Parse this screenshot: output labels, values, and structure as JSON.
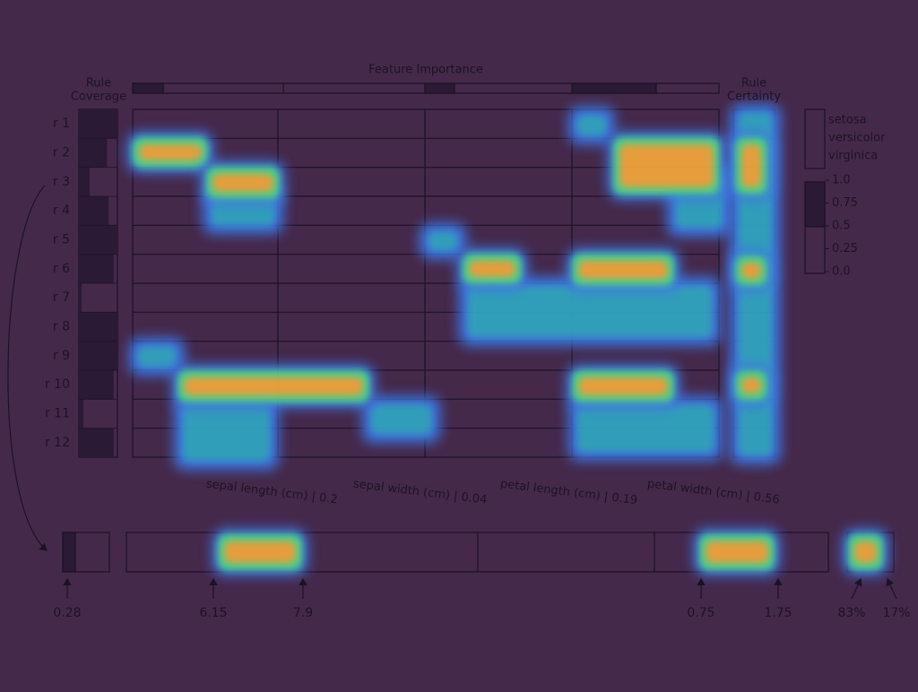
{
  "header": {
    "coverage_title": [
      "Rule",
      "Coverage"
    ],
    "importance_title": "Feature Importance",
    "certainty_title": [
      "Rule",
      "Certainty"
    ]
  },
  "rules": [
    {
      "label": "r 1",
      "coverage": 1.0
    },
    {
      "label": "r 2",
      "coverage": 0.73
    },
    {
      "label": "r 3",
      "coverage": 0.28
    },
    {
      "label": "r 4",
      "coverage": 0.77
    },
    {
      "label": "r 5",
      "coverage": 1.0
    },
    {
      "label": "r 6",
      "coverage": 0.9
    },
    {
      "label": "r 7",
      "coverage": 0.07
    },
    {
      "label": "r 8",
      "coverage": 1.0
    },
    {
      "label": "r 9",
      "coverage": 1.0
    },
    {
      "label": "r 10",
      "coverage": 0.9
    },
    {
      "label": "r 11",
      "coverage": 0.12
    },
    {
      "label": "r 12",
      "coverage": 0.9
    }
  ],
  "features": [
    "sepal length (cm) | 0.2",
    "sepal width (cm) | 0.04",
    "petal length (cm) | 0.19",
    "petal width (cm) | 0.56"
  ],
  "legend": {
    "classes": [
      "setosa",
      "versicolor",
      "virginica"
    ],
    "colorbar_ticks": [
      "1.0",
      "0.75",
      "0.5",
      "0.25",
      "0.0"
    ]
  },
  "selected_rule": {
    "coverage_label": "0.28",
    "range_labels": [
      "6.15",
      "7.9",
      "0.75",
      "1.75"
    ],
    "certainty_labels": [
      "83%",
      "17%"
    ]
  }
}
